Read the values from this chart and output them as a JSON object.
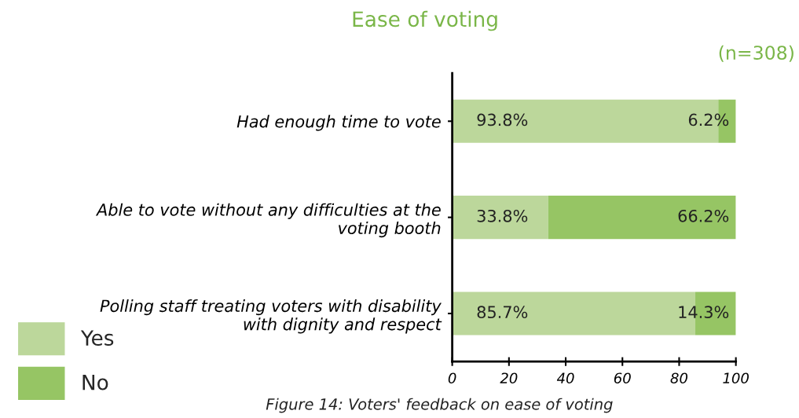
{
  "chart_data": {
    "type": "bar",
    "orientation": "horizontal",
    "stacked": true,
    "title": "Ease of voting",
    "subtitle": "(n=308)",
    "categories": [
      "Had enough time to vote",
      "Able to vote without any difficulties at the\nvoting booth",
      "Polling staff treating voters with disability\nwith dignity and respect"
    ],
    "series": [
      {
        "name": "Yes",
        "color": "#bcd79b",
        "values": [
          93.8,
          33.8,
          85.7
        ],
        "value_labels": [
          "93.8%",
          "33.8%",
          "85.7%"
        ]
      },
      {
        "name": "No",
        "color": "#96c564",
        "values": [
          6.2,
          66.2,
          14.3
        ],
        "value_labels": [
          "6.2%",
          "66.2%",
          "14.3%"
        ]
      }
    ],
    "xlim": [
      0,
      100
    ],
    "xticks": [
      0,
      20,
      40,
      60,
      80,
      100
    ],
    "legend": "bottom left",
    "grid": false,
    "annotations": [
      "Figure 14: Voters' feedback on ease of voting"
    ]
  }
}
